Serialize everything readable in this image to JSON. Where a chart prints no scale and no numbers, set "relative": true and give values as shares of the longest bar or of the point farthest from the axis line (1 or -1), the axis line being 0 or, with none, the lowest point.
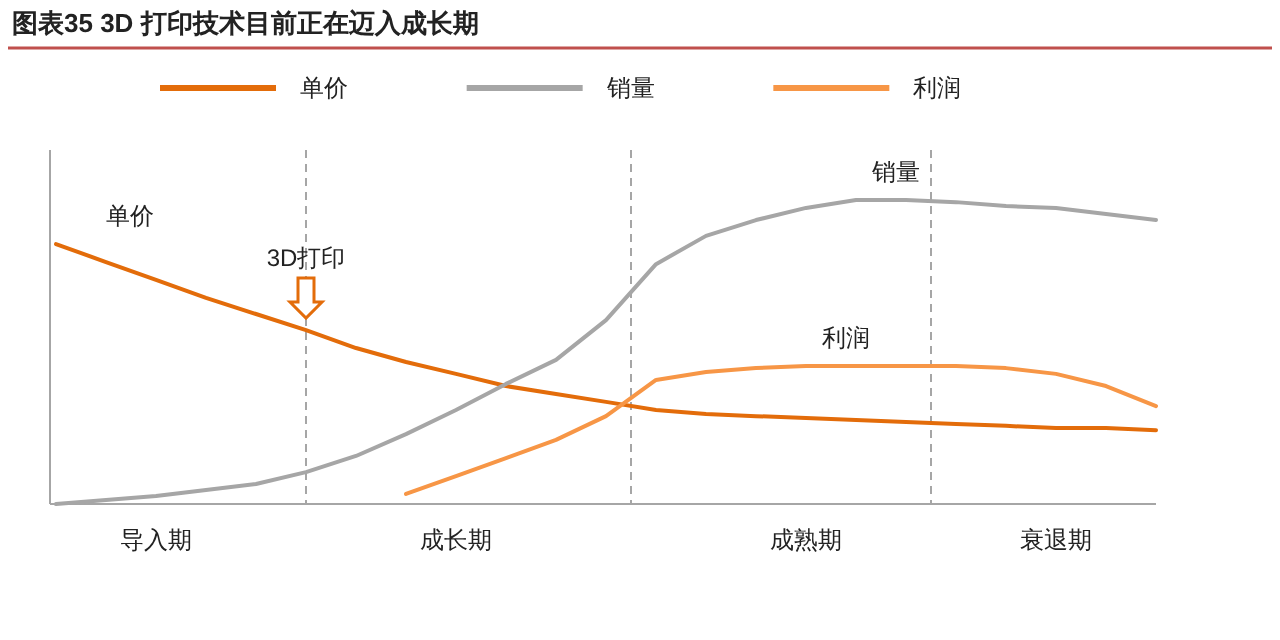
{
  "chart_data": {
    "type": "line",
    "title": "图表35    3D 打印技术目前正在迈入成长期",
    "relative": true,
    "legend": "top",
    "grid": "x",
    "line_style": "solid",
    "categories": [
      null,
      null,
      "导入期",
      null,
      null,
      null,
      null,
      null,
      "成长期",
      null,
      null,
      null,
      null,
      null,
      null,
      "成熟期",
      null,
      null,
      null,
      null,
      "衰退期",
      null,
      null
    ],
    "annotations": [
      "3D打印"
    ],
    "series": [
      {
        "name": "单价",
        "color": "#e36c0a",
        "values": [
          0.855,
          0.796,
          0.737,
          0.678,
          0.625,
          0.572,
          0.513,
          0.467,
          0.428,
          0.388,
          0.362,
          0.336,
          0.309,
          0.296,
          0.289,
          0.283,
          0.276,
          0.27,
          0.263,
          0.257,
          0.25,
          0.25,
          0.243
        ]
      },
      {
        "name": "销量",
        "color": "#a6a6a6",
        "values": [
          0,
          0.013,
          0.026,
          0.046,
          0.066,
          0.105,
          0.158,
          0.23,
          0.309,
          0.395,
          0.474,
          0.605,
          0.789,
          0.882,
          0.934,
          0.974,
          1,
          1,
          0.993,
          0.98,
          0.974,
          0.954,
          0.934
        ]
      },
      {
        "name": "利润",
        "color": "#f79646",
        "values": [
          null,
          null,
          null,
          null,
          null,
          null,
          null,
          0.033,
          0.092,
          0.151,
          0.211,
          0.289,
          0.408,
          0.434,
          0.447,
          0.454,
          0.454,
          0.454,
          0.454,
          0.447,
          0.428,
          0.388,
          0.322
        ]
      }
    ]
  }
}
